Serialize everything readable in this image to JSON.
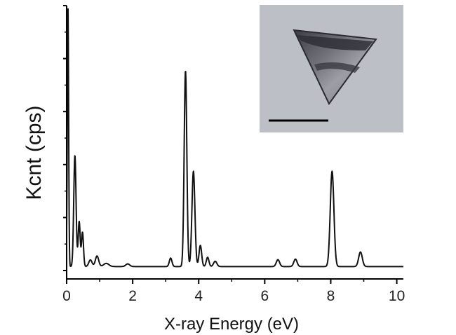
{
  "chart_data": {
    "type": "line",
    "title": "",
    "xlabel": "X-ray Energy (eV)",
    "ylabel": "Kcnt (cps)",
    "xlim": [
      0,
      10.2
    ],
    "ylim": [
      0,
      100
    ],
    "x_ticks": [
      0,
      2,
      4,
      6,
      8,
      10
    ],
    "x_tick_labels": [
      "0",
      "2",
      "4",
      "6",
      "8",
      "10"
    ],
    "y_ticks": [
      0,
      20,
      40,
      60,
      80,
      100
    ],
    "y_tick_labels": [],
    "grid": false,
    "baseline": 1.5,
    "series": [
      {
        "name": "",
        "color": "#111111",
        "peaks": [
          {
            "x": 0.04,
            "y": 98,
            "width": 0.02
          },
          {
            "x": 0.25,
            "y": 42,
            "width": 0.035
          },
          {
            "x": 0.38,
            "y": 17,
            "width": 0.03
          },
          {
            "x": 0.48,
            "y": 13,
            "width": 0.03
          },
          {
            "x": 0.72,
            "y": 2.5,
            "width": 0.05
          },
          {
            "x": 0.92,
            "y": 4,
            "width": 0.05
          },
          {
            "x": 1.2,
            "y": 1.2,
            "width": 0.08
          },
          {
            "x": 1.85,
            "y": 1.0,
            "width": 0.06
          },
          {
            "x": 3.15,
            "y": 3.2,
            "width": 0.04
          },
          {
            "x": 3.6,
            "y": 74,
            "width": 0.04
          },
          {
            "x": 3.84,
            "y": 36,
            "width": 0.045
          },
          {
            "x": 4.05,
            "y": 8,
            "width": 0.04
          },
          {
            "x": 4.27,
            "y": 3.5,
            "width": 0.04
          },
          {
            "x": 4.5,
            "y": 2,
            "width": 0.05
          },
          {
            "x": 6.4,
            "y": 2.6,
            "width": 0.05
          },
          {
            "x": 6.93,
            "y": 2.8,
            "width": 0.05
          },
          {
            "x": 8.04,
            "y": 36,
            "width": 0.055
          },
          {
            "x": 8.9,
            "y": 5.5,
            "width": 0.055
          }
        ]
      }
    ]
  },
  "inset": {
    "type": "electron-micrograph",
    "subject": "triangular nanoplate",
    "background_color": "#bdbfc7",
    "scale_bar_color": "#000000"
  }
}
